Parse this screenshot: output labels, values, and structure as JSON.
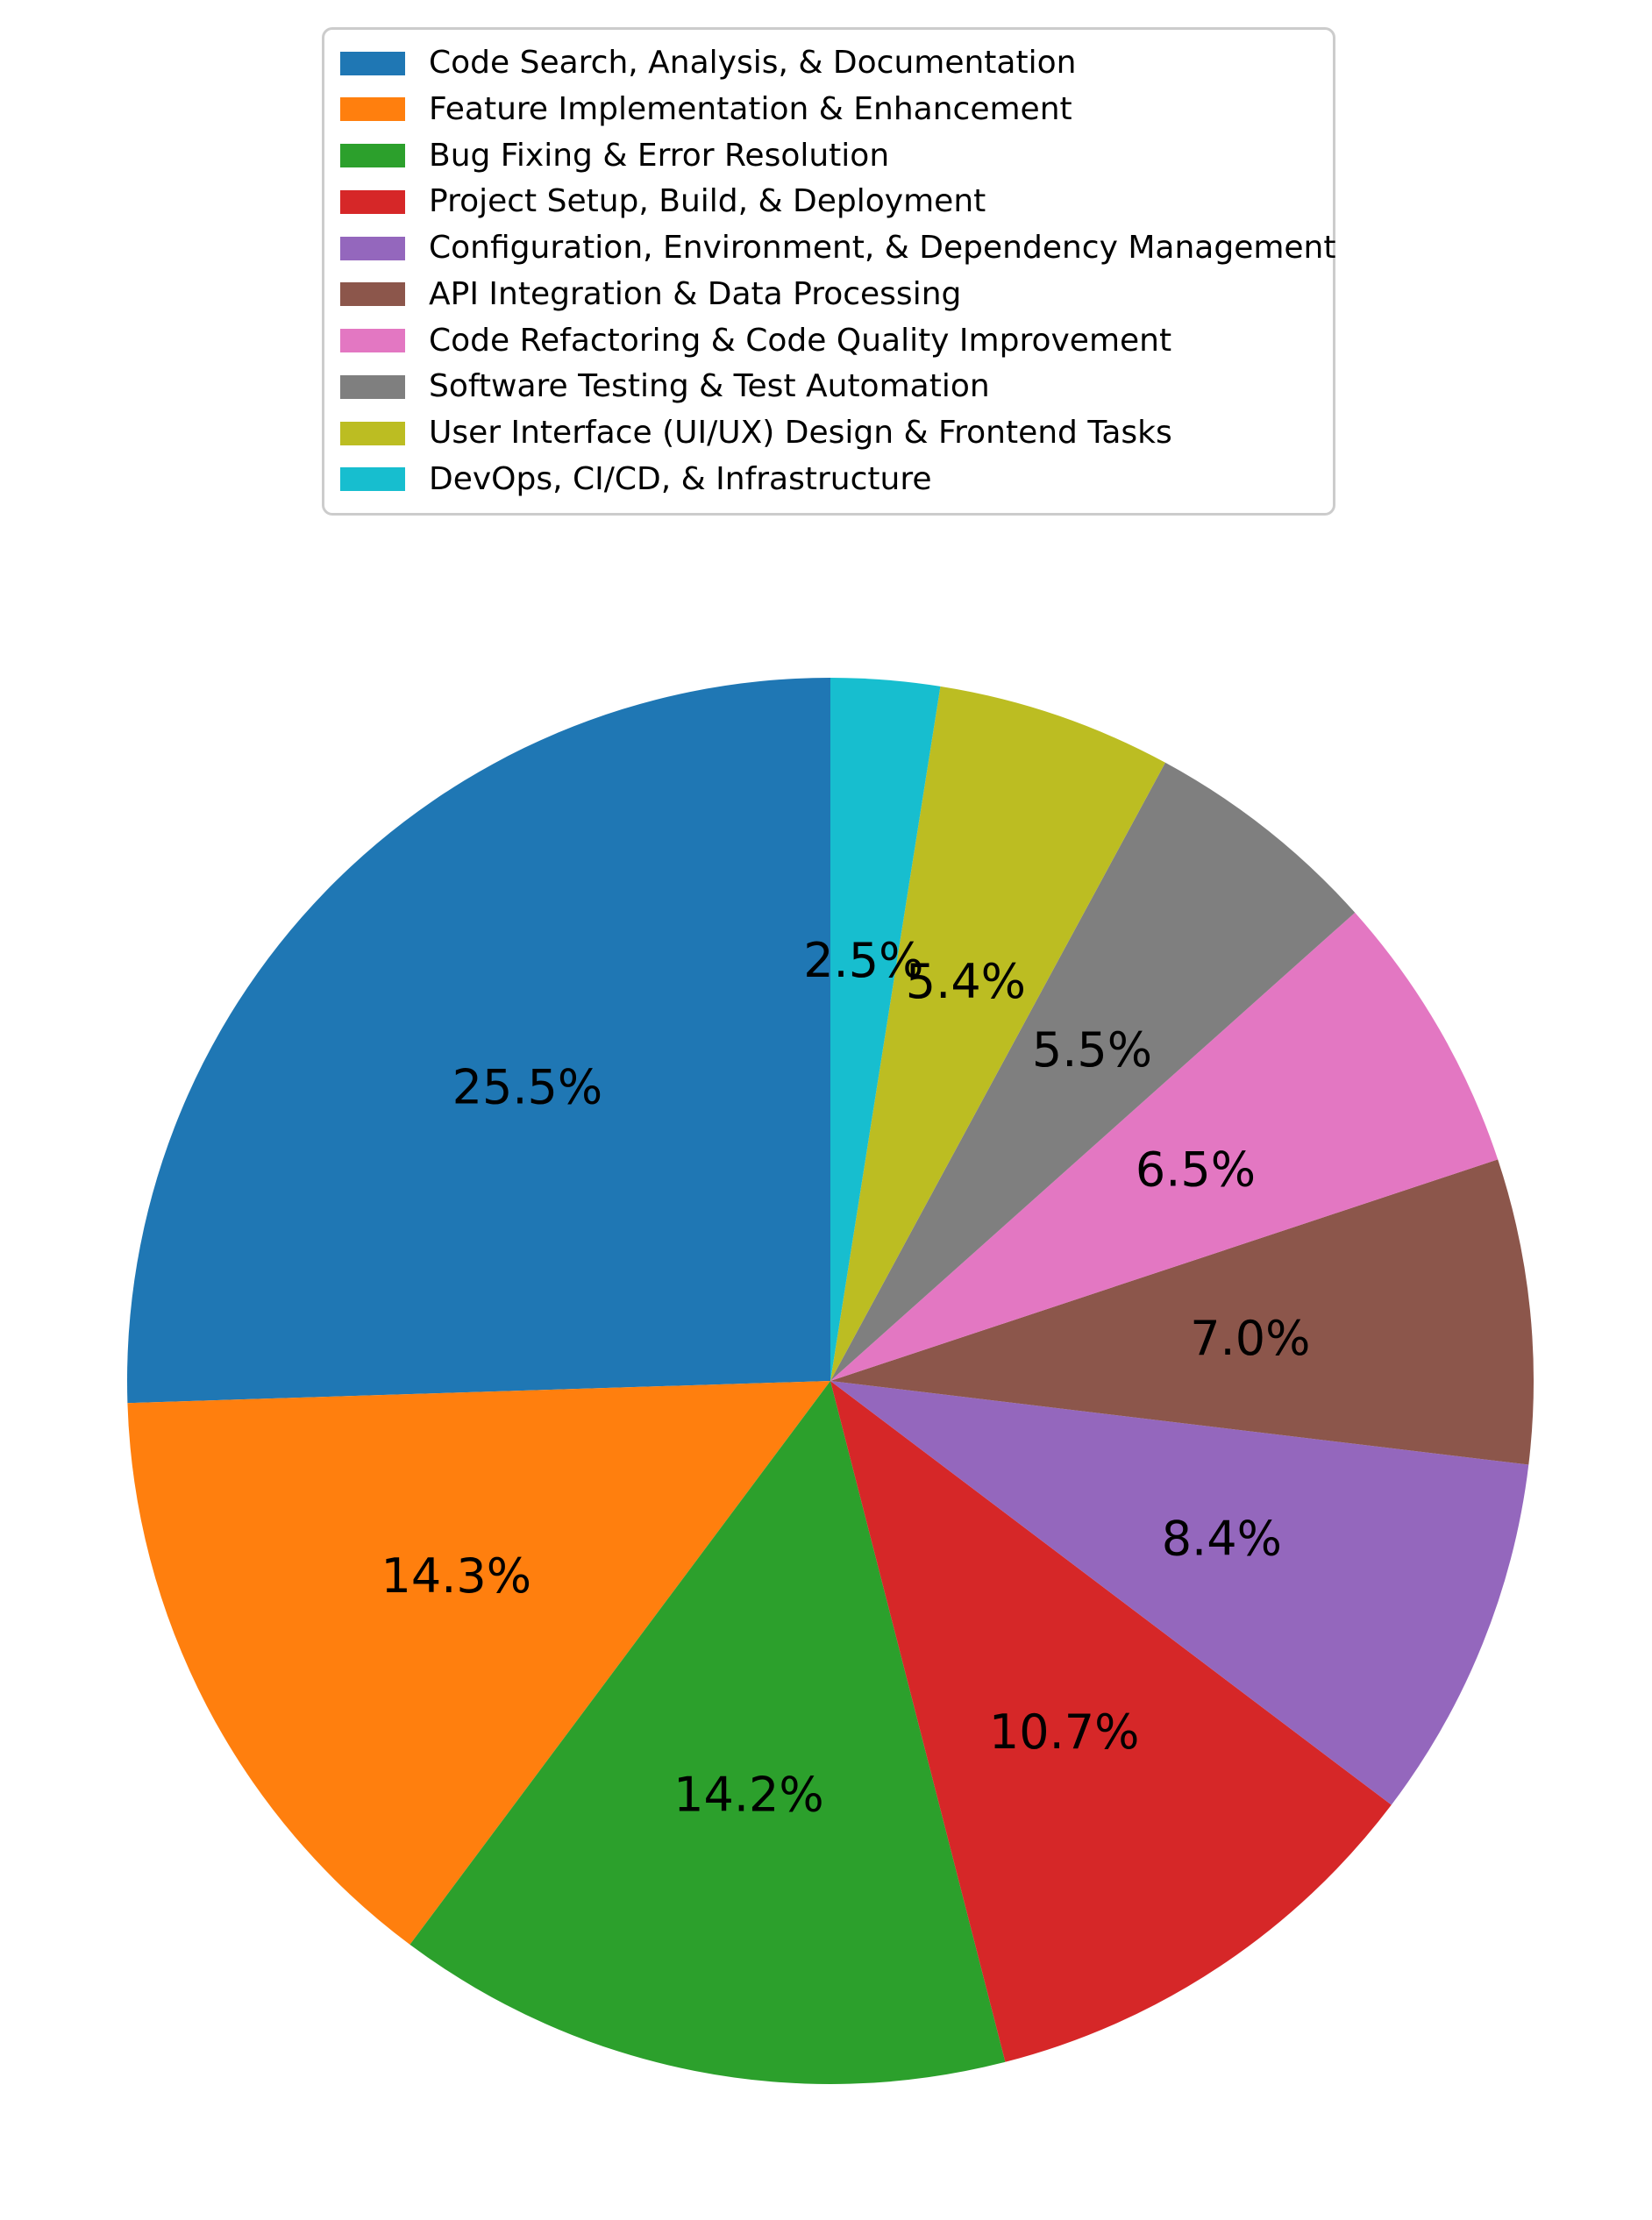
{
  "chart_data": {
    "type": "pie",
    "title": "",
    "startangle": 90,
    "counterclock": true,
    "pctdistance": 0.6,
    "autopct_format": "%.1f%%",
    "legend_position": "upper center",
    "background_color": "#ffffff",
    "label_color": "#000000",
    "legend_border_color": "#cccccc",
    "slices": [
      {
        "label": "Code Search, Analysis, & Documentation",
        "value": 25.5,
        "pct_label": "25.5%",
        "color": "#1f77b4"
      },
      {
        "label": "Feature Implementation & Enhancement",
        "value": 14.3,
        "pct_label": "14.3%",
        "color": "#ff7f0e"
      },
      {
        "label": "Bug Fixing & Error Resolution",
        "value": 14.2,
        "pct_label": "14.2%",
        "color": "#2ca02c"
      },
      {
        "label": "Project Setup, Build, & Deployment",
        "value": 10.7,
        "pct_label": "10.7%",
        "color": "#d62728"
      },
      {
        "label": "Configuration, Environment, & Dependency Management",
        "value": 8.4,
        "pct_label": "8.4%",
        "color": "#9467bd"
      },
      {
        "label": "API Integration & Data Processing",
        "value": 7.0,
        "pct_label": "7.0%",
        "color": "#8c564b"
      },
      {
        "label": "Code Refactoring & Code Quality Improvement",
        "value": 6.5,
        "pct_label": "6.5%",
        "color": "#e377c2"
      },
      {
        "label": "Software Testing & Test Automation",
        "value": 5.5,
        "pct_label": "5.5%",
        "color": "#7f7f7f"
      },
      {
        "label": "User Interface (UI/UX) Design & Frontend Tasks",
        "value": 5.4,
        "pct_label": "5.4%",
        "color": "#bcbd22"
      },
      {
        "label": "DevOps, CI/CD, & Infrastructure",
        "value": 2.5,
        "pct_label": "2.5%",
        "color": "#17becf"
      }
    ]
  }
}
